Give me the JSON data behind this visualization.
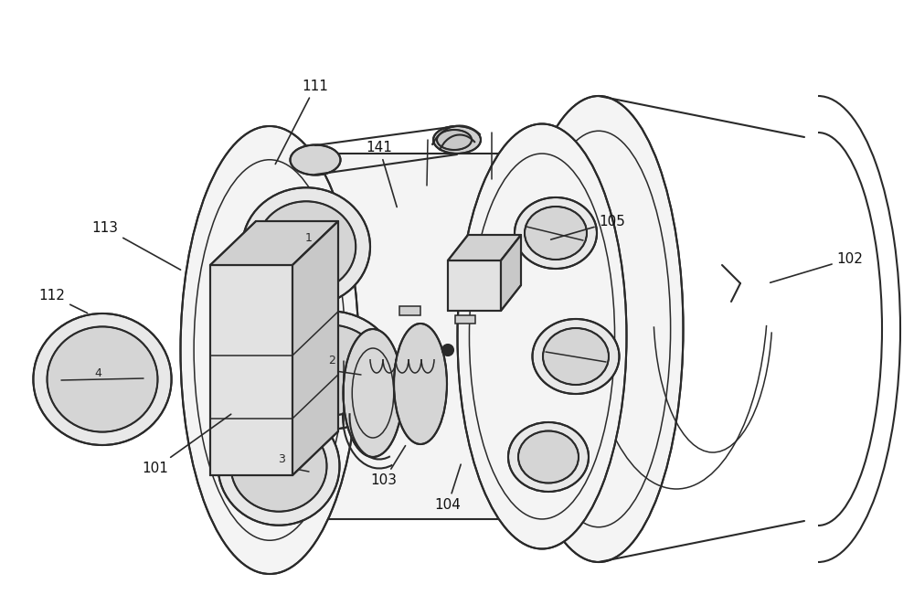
{
  "bg_color": "#ffffff",
  "lc": "#2a2a2a",
  "lw": 1.5,
  "tlw": 1.1,
  "figsize": [
    10.0,
    6.74
  ],
  "dpi": 100,
  "labels": {
    "101": {
      "txy": [
        0.17,
        0.76
      ],
      "axy": [
        0.255,
        0.67
      ]
    },
    "102": {
      "txy": [
        0.93,
        0.42
      ],
      "axy": [
        0.84,
        0.46
      ]
    },
    "103": {
      "txy": [
        0.42,
        0.78
      ],
      "axy": [
        0.445,
        0.72
      ]
    },
    "104": {
      "txy": [
        0.49,
        0.82
      ],
      "axy": [
        0.505,
        0.75
      ]
    },
    "105": {
      "txy": [
        0.67,
        0.36
      ],
      "axy": [
        0.6,
        0.39
      ]
    },
    "111": {
      "txy": [
        0.345,
        0.14
      ],
      "axy": [
        0.3,
        0.27
      ]
    },
    "112": {
      "txy": [
        0.057,
        0.48
      ],
      "axy": [
        0.098,
        0.51
      ]
    },
    "113": {
      "txy": [
        0.115,
        0.37
      ],
      "axy": [
        0.2,
        0.44
      ]
    },
    "141": {
      "txy": [
        0.415,
        0.24
      ],
      "axy": [
        0.435,
        0.34
      ]
    }
  }
}
